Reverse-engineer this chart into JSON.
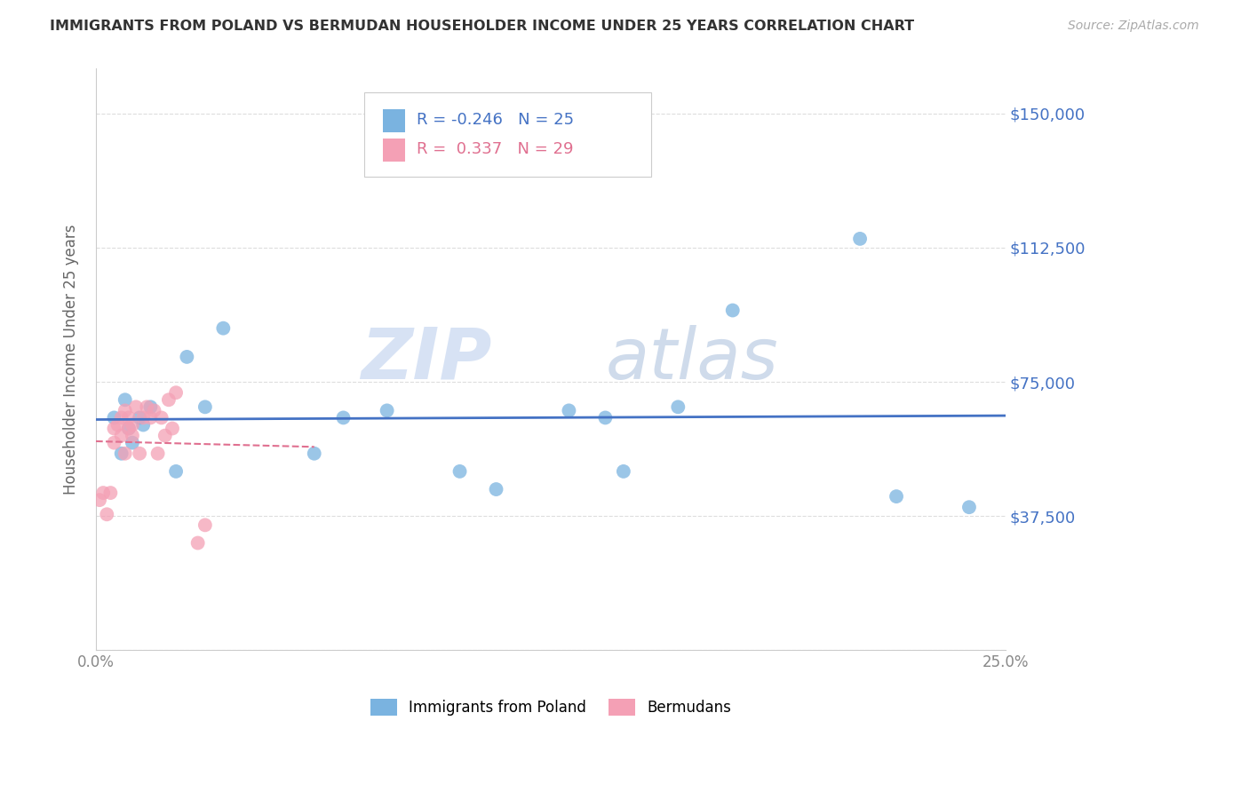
{
  "title": "IMMIGRANTS FROM POLAND VS BERMUDAN HOUSEHOLDER INCOME UNDER 25 YEARS CORRELATION CHART",
  "source": "Source: ZipAtlas.com",
  "ylabel": "Householder Income Under 25 years",
  "xlim": [
    0.0,
    0.25
  ],
  "ylim": [
    0,
    162500
  ],
  "ytick_vals": [
    0,
    37500,
    75000,
    112500,
    150000
  ],
  "ytick_labels": [
    "",
    "$37,500",
    "$75,000",
    "$112,500",
    "$150,000"
  ],
  "xtick_vals": [
    0.0,
    0.05,
    0.1,
    0.15,
    0.2,
    0.25
  ],
  "xtick_labels": [
    "0.0%",
    "",
    "",
    "",
    "",
    "25.0%"
  ],
  "R_poland": -0.246,
  "N_poland": 25,
  "R_bermuda": 0.337,
  "N_bermuda": 29,
  "color_poland": "#7ab3e0",
  "color_bermuda": "#f4a0b5",
  "trend_poland_color": "#4472c4",
  "trend_bermuda_color": "#e07090",
  "watermark_zip": "ZIP",
  "watermark_atlas": "atlas",
  "poland_x": [
    0.005,
    0.007,
    0.008,
    0.009,
    0.01,
    0.012,
    0.013,
    0.015,
    0.022,
    0.025,
    0.03,
    0.035,
    0.06,
    0.068,
    0.08,
    0.1,
    0.11,
    0.13,
    0.14,
    0.145,
    0.16,
    0.175,
    0.21,
    0.22,
    0.24
  ],
  "poland_y": [
    65000,
    55000,
    70000,
    62000,
    58000,
    65000,
    63000,
    68000,
    50000,
    82000,
    68000,
    90000,
    55000,
    65000,
    67000,
    50000,
    45000,
    67000,
    65000,
    50000,
    68000,
    95000,
    115000,
    43000,
    40000
  ],
  "bermuda_x": [
    0.001,
    0.002,
    0.003,
    0.004,
    0.005,
    0.005,
    0.006,
    0.007,
    0.007,
    0.008,
    0.008,
    0.009,
    0.009,
    0.01,
    0.01,
    0.011,
    0.012,
    0.013,
    0.014,
    0.015,
    0.016,
    0.017,
    0.018,
    0.019,
    0.02,
    0.021,
    0.022,
    0.028,
    0.03
  ],
  "bermuda_y": [
    42000,
    44000,
    38000,
    44000,
    62000,
    58000,
    63000,
    65000,
    60000,
    67000,
    55000,
    65000,
    62000,
    63000,
    60000,
    68000,
    55000,
    65000,
    68000,
    65000,
    67000,
    55000,
    65000,
    60000,
    70000,
    62000,
    72000,
    30000,
    35000
  ]
}
